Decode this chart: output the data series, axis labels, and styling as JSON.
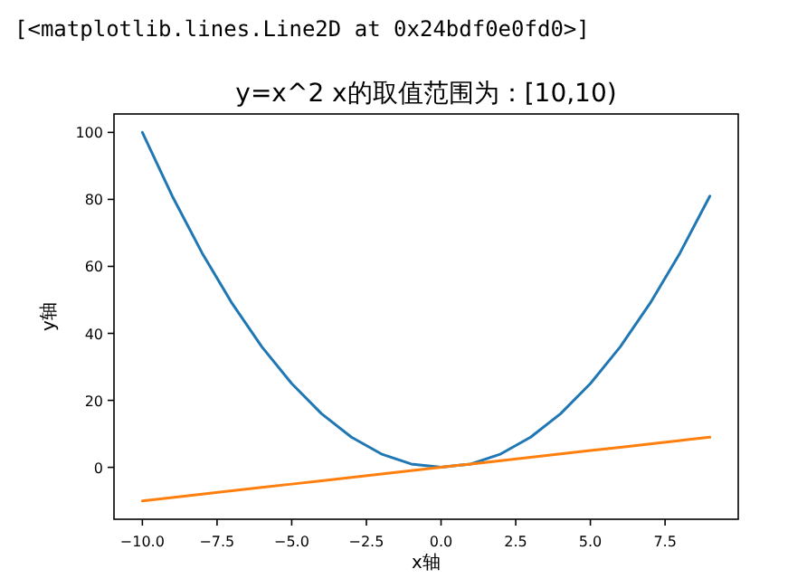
{
  "chart_data": {
    "type": "line",
    "title": "y=x^2 x的取值范围为：[10,10)",
    "xlabel": "x轴",
    "ylabel": "y轴",
    "annotations": [
      "[<matplotlib.lines.Line2D at 0x24bdf0e0fd0>]"
    ],
    "x": [
      -10,
      -9,
      -8,
      -7,
      -6,
      -5,
      -4,
      -3,
      -2,
      -1,
      0,
      1,
      2,
      3,
      4,
      5,
      6,
      7,
      8,
      9
    ],
    "series": [
      {
        "color": "#1f77b4",
        "values": [
          100,
          81,
          64,
          49,
          36,
          25,
          16,
          9,
          4,
          1,
          0,
          1,
          4,
          9,
          16,
          25,
          36,
          49,
          64,
          81
        ]
      },
      {
        "color": "#ff7f0e",
        "values": [
          -10,
          -9,
          -8,
          -7,
          -6,
          -5,
          -4,
          -3,
          -2,
          -1,
          0,
          1,
          2,
          3,
          4,
          5,
          6,
          7,
          8,
          9
        ]
      }
    ],
    "xlim": [
      -10.95,
      9.95
    ],
    "ylim": [
      -15.5,
      105.5
    ],
    "xticks": [
      {
        "value": -10,
        "label": "−10.0"
      },
      {
        "value": -7.5,
        "label": "−7.5"
      },
      {
        "value": -5,
        "label": "−5.0"
      },
      {
        "value": -2.5,
        "label": "−2.5"
      },
      {
        "value": 0,
        "label": "0.0"
      },
      {
        "value": 2.5,
        "label": "2.5"
      },
      {
        "value": 5,
        "label": "5.0"
      },
      {
        "value": 7.5,
        "label": "7.5"
      }
    ],
    "yticks": [
      0,
      20,
      40,
      60,
      80,
      100
    ]
  }
}
